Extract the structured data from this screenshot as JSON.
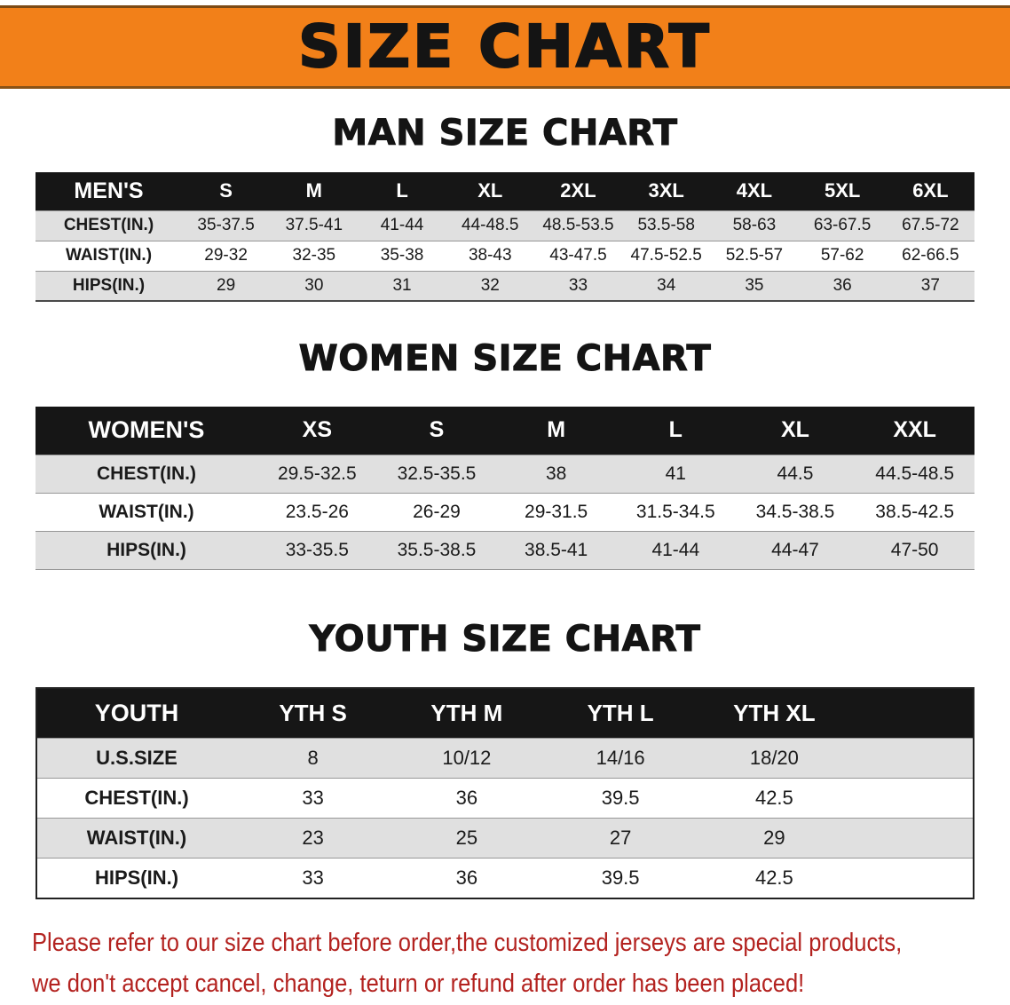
{
  "banner": {
    "title": "SIZE CHART",
    "bg_color": "#f28019",
    "text_color": "#141414"
  },
  "colors": {
    "table_header_black": "#161616",
    "row_stripe_gray": "#e0e0e0",
    "warning_red": "#b3221f"
  },
  "footer": {
    "line1": "Please refer to our size chart before order,the customized jerseys are special products,",
    "line2": "we don't accept cancel, change, teturn or refund after order has been placed!"
  },
  "chart_data": [
    {
      "type": "table",
      "title": "MAN SIZE CHART",
      "columns": [
        "MEN'S",
        "S",
        "M",
        "L",
        "XL",
        "2XL",
        "3XL",
        "4XL",
        "5XL",
        "6XL"
      ],
      "rows": [
        [
          "CHEST(IN.)",
          "35-37.5",
          "37.5-41",
          "41-44",
          "44-48.5",
          "48.5-53.5",
          "53.5-58",
          "58-63",
          "63-67.5",
          "67.5-72"
        ],
        [
          "WAIST(IN.)",
          "29-32",
          "32-35",
          "35-38",
          "38-43",
          "43-47.5",
          "47.5-52.5",
          "52.5-57",
          "57-62",
          "62-66.5"
        ],
        [
          "HIPS(IN.)",
          "29",
          "30",
          "31",
          "32",
          "33",
          "34",
          "35",
          "36",
          "37"
        ]
      ]
    },
    {
      "type": "table",
      "title": "WOMEN SIZE CHART",
      "columns": [
        "WOMEN'S",
        "XS",
        "S",
        "M",
        "L",
        "XL",
        "XXL"
      ],
      "rows": [
        [
          "CHEST(IN.)",
          "29.5-32.5",
          "32.5-35.5",
          "38",
          "41",
          "44.5",
          "44.5-48.5"
        ],
        [
          "WAIST(IN.)",
          "23.5-26",
          "26-29",
          "29-31.5",
          "31.5-34.5",
          "34.5-38.5",
          "38.5-42.5"
        ],
        [
          "HIPS(IN.)",
          "33-35.5",
          "35.5-38.5",
          "38.5-41",
          "41-44",
          "44-47",
          "47-50"
        ]
      ]
    },
    {
      "type": "table",
      "title": "YOUTH SIZE CHART",
      "columns": [
        "YOUTH",
        "YTH S",
        "YTH M",
        "YTH L",
        "YTH XL"
      ],
      "rows": [
        [
          "U.S.SIZE",
          "8",
          "10/12",
          "14/16",
          "18/20"
        ],
        [
          "CHEST(IN.)",
          "33",
          "36",
          "39.5",
          "42.5"
        ],
        [
          "WAIST(IN.)",
          "23",
          "25",
          "27",
          "29"
        ],
        [
          "HIPS(IN.)",
          "33",
          "36",
          "39.5",
          "42.5"
        ]
      ]
    }
  ]
}
